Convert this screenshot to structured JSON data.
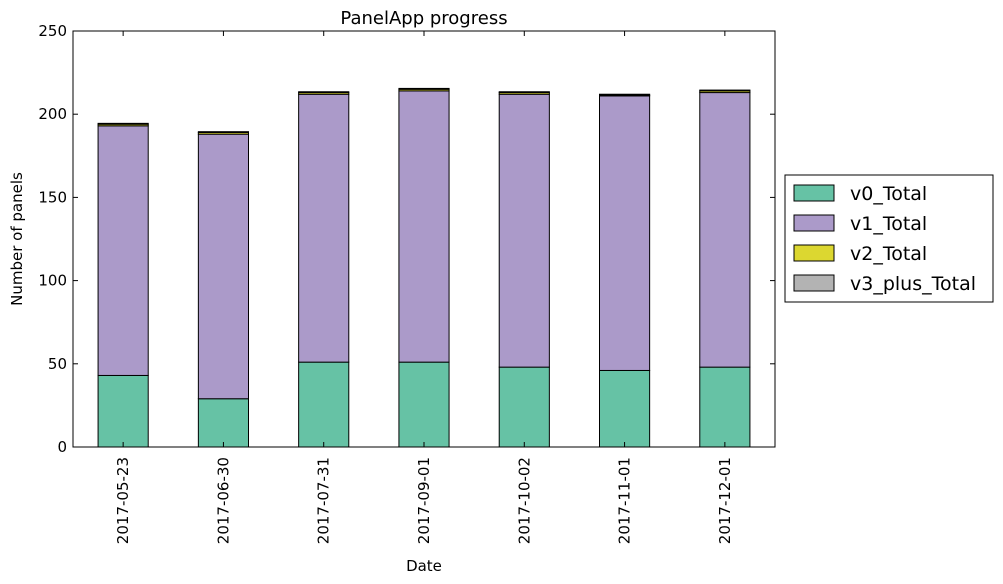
{
  "chart_data": {
    "type": "bar",
    "stacked": true,
    "title": "PanelApp progress",
    "xlabel": "Date",
    "ylabel": "Number of panels",
    "ylim": [
      0,
      250
    ],
    "yticks": [
      0,
      50,
      100,
      150,
      200,
      250
    ],
    "categories": [
      "2017-05-23",
      "2017-06-30",
      "2017-07-31",
      "2017-09-01",
      "2017-10-02",
      "2017-11-01",
      "2017-12-01"
    ],
    "series": [
      {
        "name": "v0_Total",
        "color": "#66c2a5",
        "values": [
          43,
          29,
          51,
          51,
          48,
          46,
          48
        ]
      },
      {
        "name": "v1_Total",
        "color": "#ab9ac9",
        "values": [
          150,
          159,
          161,
          163,
          164,
          165,
          165
        ]
      },
      {
        "name": "v2_Total",
        "color": "#dcd730",
        "values": [
          1,
          1,
          1,
          1,
          1,
          0.5,
          1
        ]
      },
      {
        "name": "v3_plus_Total",
        "color": "#b3b3b3",
        "values": [
          0.5,
          0.5,
          0.5,
          0.5,
          0.5,
          0.5,
          0.5
        ]
      }
    ],
    "grid": false,
    "legend_position": "outside-right"
  }
}
